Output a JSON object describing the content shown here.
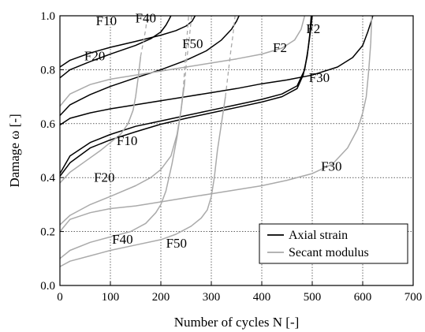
{
  "chart_data": {
    "type": "line",
    "xlabel": "Number of cycles N [-]",
    "ylabel": "Damage ω [-]",
    "xlim": [
      0,
      700
    ],
    "ylim": [
      0,
      1.0
    ],
    "xticks": [
      0,
      100,
      200,
      300,
      400,
      500,
      600,
      700
    ],
    "yticks": [
      0.0,
      0.2,
      0.4,
      0.6,
      0.8,
      1.0
    ],
    "xtick_labels": [
      "0",
      "100",
      "200",
      "300",
      "400",
      "500",
      "600",
      "700"
    ],
    "ytick_labels": [
      "0.0",
      "0.2",
      "0.4",
      "0.6",
      "0.8",
      "1.0"
    ],
    "grid": true,
    "legend_position": "bottom-right",
    "legend": [
      {
        "label": "Axial strain",
        "color": "#000000"
      },
      {
        "label": "Secant modulus",
        "color": "#aaaaaa"
      }
    ],
    "series": [
      {
        "name": "F2",
        "group": "Axial strain",
        "color": "#000000",
        "points": [
          [
            0,
            0.81
          ],
          [
            20,
            0.835
          ],
          [
            60,
            0.862
          ],
          [
            100,
            0.883
          ],
          [
            150,
            0.905
          ],
          [
            200,
            0.928
          ],
          [
            230,
            0.945
          ],
          [
            250,
            0.962
          ],
          [
            262,
            0.98
          ],
          [
            268,
            1.0
          ]
        ]
      },
      {
        "name": "F10",
        "group": "Axial strain",
        "color": "#000000",
        "points": [
          [
            0,
            0.77
          ],
          [
            20,
            0.8
          ],
          [
            60,
            0.83
          ],
          [
            100,
            0.858
          ],
          [
            150,
            0.89
          ],
          [
            180,
            0.915
          ],
          [
            200,
            0.94
          ],
          [
            210,
            0.965
          ],
          [
            216,
            0.985
          ],
          [
            220,
            1.0
          ]
        ]
      },
      {
        "name": "F20",
        "group": "Axial strain",
        "color": "#000000",
        "points": [
          [
            0,
            0.63
          ],
          [
            20,
            0.67
          ],
          [
            60,
            0.708
          ],
          [
            100,
            0.738
          ],
          [
            150,
            0.77
          ],
          [
            200,
            0.8
          ],
          [
            250,
            0.835
          ],
          [
            290,
            0.87
          ],
          [
            320,
            0.91
          ],
          [
            340,
            0.95
          ],
          [
            350,
            0.98
          ],
          [
            355,
            1.0
          ]
        ]
      },
      {
        "name": "F30",
        "group": "Axial strain",
        "color": "#000000",
        "points": [
          [
            0,
            0.595
          ],
          [
            20,
            0.62
          ],
          [
            60,
            0.64
          ],
          [
            100,
            0.655
          ],
          [
            150,
            0.67
          ],
          [
            200,
            0.685
          ],
          [
            250,
            0.7
          ],
          [
            300,
            0.715
          ],
          [
            350,
            0.73
          ],
          [
            400,
            0.748
          ],
          [
            450,
            0.762
          ],
          [
            500,
            0.78
          ],
          [
            550,
            0.81
          ],
          [
            580,
            0.845
          ],
          [
            600,
            0.89
          ],
          [
            610,
            0.94
          ],
          [
            617,
            0.98
          ],
          [
            620,
            1.0
          ]
        ]
      },
      {
        "name": "F40",
        "group": "Axial strain",
        "color": "#000000",
        "points": [
          [
            0,
            0.415
          ],
          [
            20,
            0.48
          ],
          [
            60,
            0.53
          ],
          [
            100,
            0.56
          ],
          [
            150,
            0.59
          ],
          [
            200,
            0.61
          ],
          [
            250,
            0.63
          ],
          [
            300,
            0.65
          ],
          [
            350,
            0.67
          ],
          [
            400,
            0.69
          ],
          [
            440,
            0.71
          ],
          [
            470,
            0.74
          ],
          [
            485,
            0.8
          ],
          [
            492,
            0.88
          ],
          [
            497,
            0.95
          ],
          [
            500,
            1.0
          ]
        ]
      },
      {
        "name": "F50",
        "group": "Axial strain",
        "color": "#000000",
        "points": [
          [
            0,
            0.405
          ],
          [
            20,
            0.455
          ],
          [
            60,
            0.51
          ],
          [
            100,
            0.54
          ],
          [
            150,
            0.57
          ],
          [
            200,
            0.598
          ],
          [
            250,
            0.62
          ],
          [
            300,
            0.64
          ],
          [
            350,
            0.66
          ],
          [
            400,
            0.68
          ],
          [
            440,
            0.7
          ],
          [
            470,
            0.73
          ],
          [
            482,
            0.78
          ],
          [
            490,
            0.85
          ],
          [
            495,
            0.93
          ],
          [
            498,
            1.0
          ]
        ]
      },
      {
        "name": "F2",
        "group": "Secant modulus",
        "color": "#aaaaaa",
        "points": [
          [
            0,
            0.665
          ],
          [
            20,
            0.71
          ],
          [
            60,
            0.745
          ],
          [
            100,
            0.765
          ],
          [
            150,
            0.78
          ],
          [
            200,
            0.795
          ],
          [
            250,
            0.81
          ],
          [
            300,
            0.825
          ],
          [
            350,
            0.84
          ],
          [
            400,
            0.858
          ],
          [
            440,
            0.88
          ],
          [
            465,
            0.91
          ],
          [
            478,
            0.95
          ],
          [
            485,
            1.0
          ]
        ]
      },
      {
        "name": "F10",
        "group": "Secant modulus",
        "color": "#aaaaaa",
        "points": [
          [
            0,
            0.38
          ],
          [
            20,
            0.42
          ],
          [
            50,
            0.46
          ],
          [
            80,
            0.5
          ],
          [
            100,
            0.53
          ],
          [
            120,
            0.56
          ],
          [
            135,
            0.6
          ],
          [
            145,
            0.65
          ],
          [
            150,
            0.7
          ],
          [
            155,
            0.77
          ],
          [
            160,
            0.85
          ]
        ]
      },
      {
        "name": "F20",
        "group": "Secant modulus",
        "color": "#aaaaaa",
        "points": [
          [
            0,
            0.225
          ],
          [
            20,
            0.26
          ],
          [
            60,
            0.3
          ],
          [
            100,
            0.33
          ],
          [
            150,
            0.37
          ],
          [
            180,
            0.4
          ],
          [
            200,
            0.43
          ],
          [
            220,
            0.48
          ],
          [
            232,
            0.56
          ],
          [
            240,
            0.65
          ],
          [
            244,
            0.72
          ]
        ]
      },
      {
        "name": "F30",
        "group": "Secant modulus",
        "color": "#aaaaaa",
        "points": [
          [
            0,
            0.2
          ],
          [
            20,
            0.245
          ],
          [
            60,
            0.27
          ],
          [
            100,
            0.285
          ],
          [
            150,
            0.295
          ],
          [
            200,
            0.31
          ],
          [
            250,
            0.325
          ],
          [
            300,
            0.34
          ],
          [
            350,
            0.355
          ],
          [
            400,
            0.37
          ],
          [
            450,
            0.39
          ],
          [
            500,
            0.415
          ],
          [
            540,
            0.45
          ],
          [
            570,
            0.51
          ],
          [
            590,
            0.58
          ],
          [
            600,
            0.64
          ],
          [
            607,
            0.7
          ],
          [
            612,
            0.8
          ],
          [
            616,
            0.9
          ],
          [
            618,
            1.0
          ]
        ]
      },
      {
        "name": "F40",
        "group": "Secant modulus",
        "color": "#aaaaaa",
        "points": [
          [
            0,
            0.1
          ],
          [
            20,
            0.13
          ],
          [
            60,
            0.16
          ],
          [
            100,
            0.18
          ],
          [
            140,
            0.2
          ],
          [
            170,
            0.23
          ],
          [
            190,
            0.27
          ],
          [
            200,
            0.3
          ],
          [
            210,
            0.35
          ],
          [
            222,
            0.45
          ],
          [
            232,
            0.55
          ],
          [
            240,
            0.65
          ],
          [
            247,
            0.75
          ]
        ]
      },
      {
        "name": "F50",
        "group": "Secant modulus",
        "color": "#aaaaaa",
        "points": [
          [
            0,
            0.07
          ],
          [
            20,
            0.09
          ],
          [
            60,
            0.11
          ],
          [
            100,
            0.13
          ],
          [
            150,
            0.15
          ],
          [
            200,
            0.17
          ],
          [
            230,
            0.19
          ],
          [
            260,
            0.22
          ],
          [
            280,
            0.25
          ],
          [
            292,
            0.28
          ],
          [
            300,
            0.33
          ],
          [
            306,
            0.4
          ],
          [
            312,
            0.5
          ],
          [
            320,
            0.6
          ],
          [
            328,
            0.7
          ]
        ]
      },
      {
        "name": "",
        "group": "Axial strain",
        "style": "dashed",
        "color": "#aaaaaa",
        "points": [
          [
            160,
            0.85
          ],
          [
            165,
            0.9
          ],
          [
            170,
            0.95
          ],
          [
            173,
            1.0
          ]
        ]
      },
      {
        "name": "",
        "group": "Secant modulus",
        "style": "dashed",
        "color": "#aaaaaa",
        "points": [
          [
            244,
            0.72
          ],
          [
            247,
            0.8
          ],
          [
            250,
            0.88
          ],
          [
            253,
            0.95
          ],
          [
            255,
            1.0
          ]
        ]
      },
      {
        "name": "",
        "group": "Secant modulus",
        "style": "dashed",
        "color": "#aaaaaa",
        "points": [
          [
            247,
            0.75
          ],
          [
            251,
            0.83
          ],
          [
            256,
            0.91
          ],
          [
            261,
            1.0
          ]
        ]
      },
      {
        "name": "",
        "group": "Secant modulus",
        "style": "dashed",
        "color": "#aaaaaa",
        "points": [
          [
            328,
            0.7
          ],
          [
            333,
            0.78
          ],
          [
            338,
            0.86
          ],
          [
            343,
            0.93
          ],
          [
            347,
            1.0
          ]
        ]
      }
    ],
    "annotations": [
      {
        "text": "F10",
        "x": 92,
        "y": 0.965
      },
      {
        "text": "F40",
        "x": 170,
        "y": 0.975
      },
      {
        "text": "F20",
        "x": 69,
        "y": 0.835
      },
      {
        "text": "F50",
        "x": 263,
        "y": 0.88
      },
      {
        "text": "F2",
        "x": 502,
        "y": 0.935
      },
      {
        "text": "F2",
        "x": 436,
        "y": 0.865
      },
      {
        "text": "F30",
        "x": 514,
        "y": 0.755
      },
      {
        "text": "F10",
        "x": 133,
        "y": 0.52
      },
      {
        "text": "F20",
        "x": 88,
        "y": 0.385
      },
      {
        "text": "F30",
        "x": 538,
        "y": 0.425
      },
      {
        "text": "F40",
        "x": 124,
        "y": 0.155
      },
      {
        "text": "F50",
        "x": 231,
        "y": 0.14
      }
    ]
  }
}
